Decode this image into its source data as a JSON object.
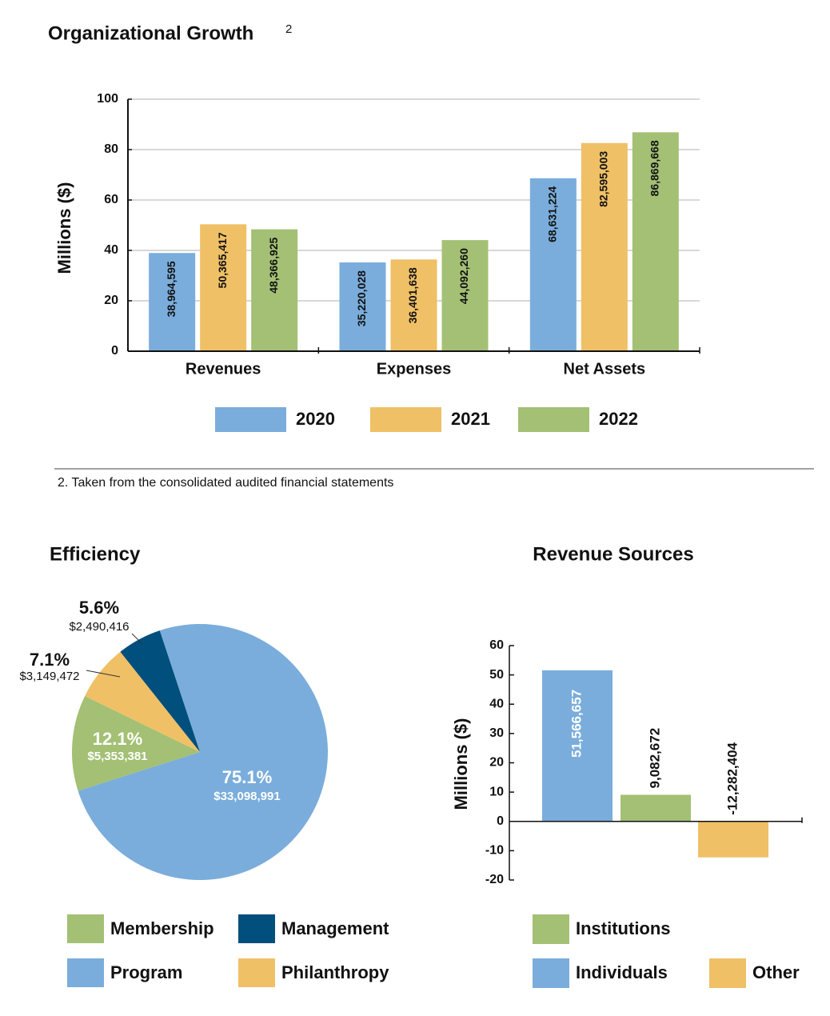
{
  "chart_data": [
    {
      "type": "bar",
      "title": "Organizational Growth",
      "title_superscript": "2",
      "y_label": "Millions ($)",
      "categories": [
        "Revenues",
        "Expenses",
        "Net Assets"
      ],
      "series": [
        {
          "name": "2020",
          "color": "#7aaddb",
          "values": [
            38.964595,
            35.220028,
            68.631224
          ],
          "value_labels": [
            "38,964,595",
            "35,220,028",
            "68,631,224"
          ]
        },
        {
          "name": "2021",
          "color": "#f0c066",
          "values": [
            50.365417,
            36.401638,
            82.595003
          ],
          "value_labels": [
            "50,365,417",
            "36,401,638",
            "82,595,003"
          ]
        },
        {
          "name": "2022",
          "color": "#a3c074",
          "values": [
            48.366925,
            44.09226,
            86.869668
          ],
          "value_labels": [
            "48,366,925",
            "44,092,260",
            "86,869,668"
          ]
        }
      ],
      "ylim": [
        0,
        100
      ],
      "yticks": [
        0,
        20,
        40,
        60,
        80,
        100
      ],
      "grid": true
    },
    {
      "type": "pie",
      "title": "Efficiency",
      "categories": [
        "Program",
        "Membership",
        "Philanthropy",
        "Management"
      ],
      "values": [
        75.1,
        12.1,
        7.1,
        5.6
      ],
      "value_labels": [
        "75.1%",
        "12.1%",
        "7.1%",
        "5.6%"
      ],
      "amount_labels": [
        "$33,098,991",
        "$5,353,381",
        "$3,149,472",
        "$2,490,416"
      ],
      "colors": [
        "#7aaddb",
        "#a3c074",
        "#f0c066",
        "#004f7c"
      ]
    },
    {
      "type": "bar",
      "title": "Revenue Sources",
      "y_label": "Millions ($)",
      "categories": [
        "Individuals",
        "Institutions",
        "Other"
      ],
      "values": [
        51.566657,
        9.082672,
        -12.282404
      ],
      "value_labels": [
        "51,566,657",
        "9,082,672",
        "-12,282,404"
      ],
      "colors": [
        "#7aaddb",
        "#a3c074",
        "#f0c066"
      ],
      "ylim": [
        -20,
        60
      ],
      "yticks": [
        -20,
        -10,
        0,
        10,
        20,
        30,
        40,
        50,
        60
      ],
      "grid": false
    }
  ],
  "footnote": "2. Taken from the consolidated audited financial statements"
}
